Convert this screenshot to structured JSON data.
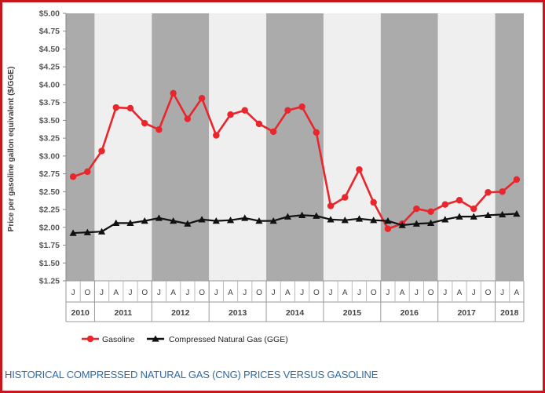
{
  "caption": "HISTORICAL COMPRESSED NATURAL GAS (CNG) PRICES VERSUS GASOLINE",
  "colors": {
    "frame": "#c8161d",
    "gasoline": "#e8262b",
    "cng": "#111111",
    "band_dark": "#ababab",
    "band_light": "#efefef",
    "caption": "#2f6aa3"
  },
  "chart_data": {
    "type": "line",
    "title": "",
    "ylabel": "Price per gasoline gallon equivalent ($/GGE)",
    "xlabel": "",
    "ylim": [
      1.25,
      5.0
    ],
    "ytick_labels": [
      "$1.25",
      "$1.50",
      "$1.75",
      "$2.00",
      "$2.25",
      "$2.50",
      "$2.75",
      "$3.00",
      "$3.25",
      "$3.50",
      "$3.75",
      "$4.00",
      "$4.25",
      "$4.50",
      "$4.75",
      "$5.00"
    ],
    "ytick_values": [
      1.25,
      1.5,
      1.75,
      2.0,
      2.25,
      2.5,
      2.75,
      3.0,
      3.25,
      3.5,
      3.75,
      4.0,
      4.25,
      4.5,
      4.75,
      5.0
    ],
    "x": [
      "J",
      "O",
      "J",
      "A",
      "J",
      "O",
      "J",
      "A",
      "J",
      "O",
      "J",
      "A",
      "J",
      "O",
      "J",
      "A",
      "J",
      "O",
      "J",
      "A",
      "J",
      "O",
      "J",
      "A",
      "J",
      "O",
      "J",
      "A",
      "J",
      "O",
      "J",
      "A"
    ],
    "years": [
      {
        "label": "2010",
        "count": 2
      },
      {
        "label": "2011",
        "count": 4
      },
      {
        "label": "2012",
        "count": 4
      },
      {
        "label": "2013",
        "count": 4
      },
      {
        "label": "2014",
        "count": 4
      },
      {
        "label": "2015",
        "count": 4
      },
      {
        "label": "2016",
        "count": 4
      },
      {
        "label": "2017",
        "count": 4
      },
      {
        "label": "2018",
        "count": 2
      }
    ],
    "series": [
      {
        "name": "Gasoline",
        "color": "#e8262b",
        "marker": "circle",
        "values": [
          2.71,
          2.78,
          3.07,
          3.68,
          3.67,
          3.46,
          3.37,
          3.88,
          3.52,
          3.81,
          3.29,
          3.58,
          3.64,
          3.45,
          3.34,
          3.64,
          3.69,
          3.33,
          2.3,
          2.42,
          2.81,
          2.35,
          1.98,
          2.05,
          2.26,
          2.22,
          2.32,
          2.38,
          2.26,
          2.49,
          2.5,
          2.67
        ]
      },
      {
        "name": "Compressed Natural Gas (GGE)",
        "color": "#111111",
        "marker": "triangle",
        "values": [
          1.92,
          1.93,
          1.94,
          2.06,
          2.06,
          2.09,
          2.13,
          2.09,
          2.05,
          2.11,
          2.09,
          2.1,
          2.13,
          2.09,
          2.09,
          2.15,
          2.17,
          2.16,
          2.11,
          2.1,
          2.12,
          2.1,
          2.09,
          2.03,
          2.05,
          2.06,
          2.11,
          2.15,
          2.15,
          2.17,
          2.18,
          2.19
        ]
      }
    ],
    "legend_position": "bottom-left",
    "grid": false
  }
}
